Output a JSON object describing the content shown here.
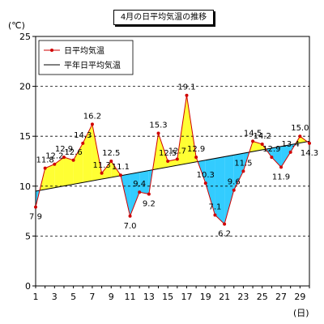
{
  "chart_data": {
    "type": "line",
    "title": "4月の日平均気温の推移",
    "ylabel": "(℃)",
    "xlabel": "(日)",
    "ylim": [
      0,
      25
    ],
    "yticks": [
      0,
      5,
      10,
      15,
      20,
      25
    ],
    "xlim": [
      1,
      30
    ],
    "xticks": [
      1,
      3,
      5,
      7,
      9,
      11,
      13,
      15,
      17,
      19,
      21,
      23,
      25,
      27,
      29
    ],
    "grid": "dashed-horizontal",
    "legend_position": "top-left",
    "above_fill_color": "#ffff33",
    "below_fill_color": "#33ccff",
    "series": [
      {
        "name": "日平均気温",
        "color": "#d00000",
        "marker": "dot",
        "x": [
          1,
          2,
          3,
          4,
          5,
          6,
          7,
          8,
          9,
          10,
          11,
          12,
          13,
          14,
          15,
          16,
          17,
          18,
          19,
          20,
          21,
          22,
          23,
          24,
          25,
          26,
          27,
          28,
          29,
          30
        ],
        "values": [
          7.9,
          11.8,
          12.2,
          12.9,
          12.6,
          14.3,
          16.2,
          11.3,
          12.5,
          11.1,
          7.0,
          9.4,
          9.2,
          15.3,
          12.5,
          12.7,
          19.1,
          12.9,
          10.3,
          7.1,
          6.2,
          9.6,
          11.5,
          14.5,
          14.2,
          12.9,
          11.9,
          13.4,
          15.0,
          14.3
        ],
        "labels": [
          "7.9",
          "11.8",
          "12.2",
          "12.9",
          "12.6",
          "14.3",
          "16.2",
          "11.3",
          "12.5",
          "11.1",
          "7.0",
          "9.4",
          "9.2",
          "15.3",
          "12.5",
          "12.7",
          "19.1",
          "12.9",
          "10.3",
          "7.1",
          "6.2",
          "9.6",
          "11.5",
          "14.5",
          "14.2",
          "12.9",
          "11.9",
          "13.4",
          "15.0",
          "14.3"
        ]
      },
      {
        "name": "平年日平均気温",
        "color": "#000000",
        "marker": "none",
        "x": [
          1,
          30
        ],
        "values": [
          9.5,
          14.5
        ]
      }
    ]
  }
}
